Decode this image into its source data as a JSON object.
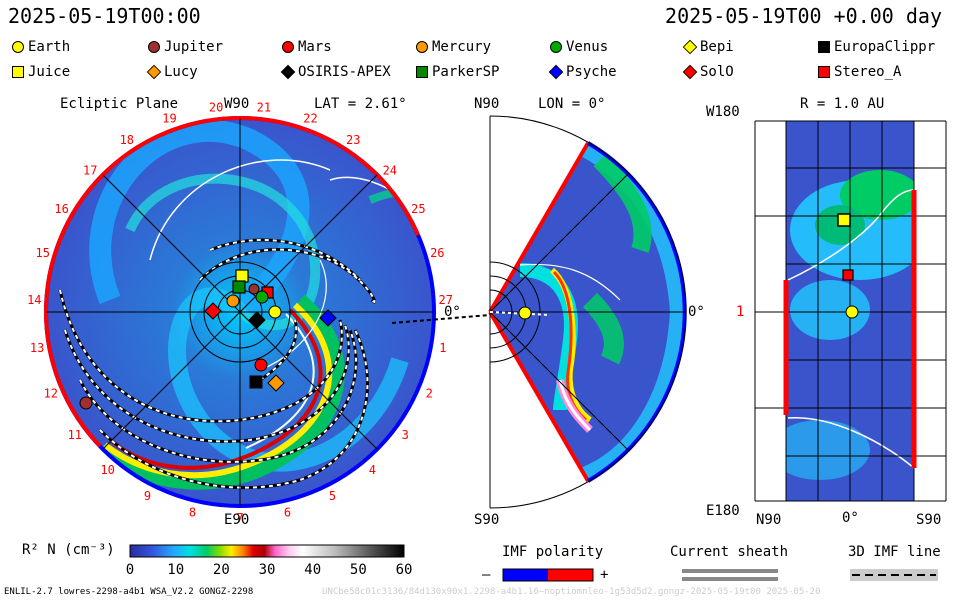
{
  "header": {
    "left_time": "2025-05-19T00:00",
    "right_time": "2025-05-19T00 +0.00 day"
  },
  "legend": [
    {
      "name": "Earth",
      "shape": "circle",
      "color": "#ffff00"
    },
    {
      "name": "Jupiter",
      "shape": "circle",
      "color": "#a03030"
    },
    {
      "name": "Mars",
      "shape": "circle",
      "color": "#ff0000"
    },
    {
      "name": "Mercury",
      "shape": "circle",
      "color": "#ff9900"
    },
    {
      "name": "Venus",
      "shape": "circle",
      "color": "#00aa00"
    },
    {
      "name": "Bepi",
      "shape": "diamond",
      "color": "#ffff00"
    },
    {
      "name": "EuropaClippr",
      "shape": "square",
      "color": "#000000"
    },
    {
      "name": "Juice",
      "shape": "square",
      "color": "#ffff00"
    },
    {
      "name": "Lucy",
      "shape": "diamond",
      "color": "#ff9900"
    },
    {
      "name": "OSIRIS-APEX",
      "shape": "diamond",
      "color": "#000000"
    },
    {
      "name": "ParkerSP",
      "shape": "square",
      "color": "#008800"
    },
    {
      "name": "Psyche",
      "shape": "diamond",
      "color": "#0000ff"
    },
    {
      "name": "SolO",
      "shape": "diamond",
      "color": "#ff0000"
    },
    {
      "name": "Stereo_A",
      "shape": "square",
      "color": "#ff0000"
    }
  ],
  "panels": {
    "ecliptic": {
      "title": "Ecliptic Plane",
      "top_label": "W90",
      "lat_label": "LAT = 2.61°",
      "bottom_label": "E90",
      "right_label": "0°",
      "carrington_labels": [
        "1",
        "2",
        "3",
        "4",
        "5",
        "6",
        "7",
        "8",
        "9",
        "10",
        "11",
        "12",
        "13",
        "14",
        "15",
        "16",
        "17",
        "18",
        "19",
        "20",
        "21",
        "22",
        "23",
        "24",
        "25",
        "26",
        "27"
      ]
    },
    "meridional": {
      "top_label": "N90",
      "lon_label": "LON = 0°",
      "right_label": "0°",
      "bottom_label": "S90"
    },
    "latlon": {
      "title": "R = 1.0 AU",
      "top_left_label": "W180",
      "left_mid_label": "1",
      "bottom_left_label": "E180",
      "x_labels": [
        "N90",
        "0°",
        "S90"
      ]
    }
  },
  "colorbar": {
    "label": "R² N (cm⁻³)",
    "ticks": [
      "0",
      "10",
      "20",
      "30",
      "40",
      "50",
      "60"
    ]
  },
  "imf_polarity": {
    "label": "IMF polarity",
    "minus": "–",
    "plus": "+",
    "neg_color": "#0000ff",
    "pos_color": "#ff0000"
  },
  "current_sheath": {
    "label": "Current sheath"
  },
  "imf_line": {
    "label": "3D IMF line"
  },
  "footer": {
    "left": "ENLIL-2.7 lowres-2298-a4b1 WSA_V2.2 GONGZ-2298",
    "right": "UNCbe58c01c3136/84d130x90x1.2298-a4b1.16—noptiomnleo-1g53d5d2.gongz-2025-05-19t00 2025-05-20"
  }
}
